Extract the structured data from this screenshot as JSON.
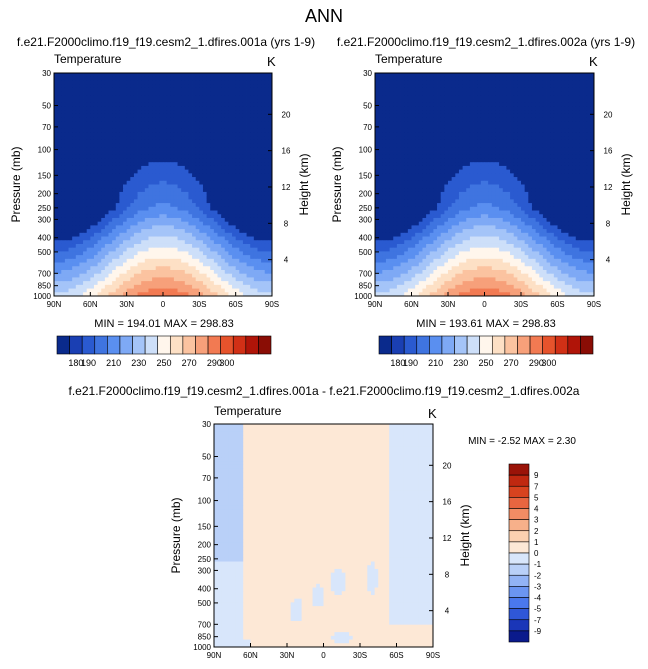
{
  "page_title": "ANN",
  "colors": {
    "abs_levels": [
      "#0a2a8c",
      "#1a3fb3",
      "#2a5ad0",
      "#3f74e0",
      "#5a8ff0",
      "#7ea9f5",
      "#a4c4f8",
      "#cddff9",
      "#fff6ec",
      "#fde0c5",
      "#fbc3a0",
      "#f7a07a",
      "#f27a52",
      "#e6532c",
      "#d13016",
      "#b01408",
      "#8a0d05"
    ],
    "diff_levels": [
      "#0a1a8c",
      "#1a36b8",
      "#2f57d8",
      "#4a78ee",
      "#6b95f2",
      "#92b3f5",
      "#b9d0f8",
      "#d8e6fb",
      "#fde8d6",
      "#fbd0b0",
      "#f7b08a",
      "#f28c64",
      "#e86540",
      "#d8431f",
      "#c02810",
      "#9a1308"
    ],
    "frame": "#000000"
  },
  "chart_data": [
    {
      "type": "heatmap",
      "name": "panel-case-a",
      "title": "f.e21.F2000climo.f19_f19.cesm2_1.dfires.001a (yrs 1-9)",
      "left_label": "Temperature",
      "right_label": "K",
      "xlabels": [
        "90N",
        "60N",
        "30N",
        "0",
        "30S",
        "60S",
        "90S"
      ],
      "xticks": [
        90,
        60,
        30,
        0,
        -30,
        -60,
        -90
      ],
      "ylabel": "Pressure (mb)",
      "ylabels": [
        "30",
        "50",
        "70",
        "100",
        "150",
        "200",
        "250",
        "300",
        "400",
        "500",
        "700",
        "850",
        "1000"
      ],
      "yticks": [
        30,
        50,
        70,
        100,
        150,
        200,
        250,
        300,
        400,
        500,
        700,
        850,
        1000
      ],
      "y2label": "Height (km)",
      "y2labels": [
        "20",
        "16",
        "12",
        "8",
        "4"
      ],
      "y2ticks": [
        20,
        16,
        12,
        8,
        4
      ],
      "ylim": [
        30,
        1000
      ],
      "xlim": [
        90,
        -90
      ],
      "stats": "MIN = 194.01   MAX = 298.83",
      "min": 194.01,
      "max": 298.83
    },
    {
      "type": "heatmap",
      "name": "panel-case-b",
      "title": "f.e21.F2000climo.f19_f19.cesm2_1.dfires.002a (yrs 1-9)",
      "left_label": "Temperature",
      "right_label": "K",
      "xlabels": [
        "90N",
        "60N",
        "30N",
        "0",
        "30S",
        "60S",
        "90S"
      ],
      "xticks": [
        90,
        60,
        30,
        0,
        -30,
        -60,
        -90
      ],
      "ylabel": "Pressure (mb)",
      "ylabels": [
        "30",
        "50",
        "70",
        "100",
        "150",
        "200",
        "250",
        "300",
        "400",
        "500",
        "700",
        "850",
        "1000"
      ],
      "yticks": [
        30,
        50,
        70,
        100,
        150,
        200,
        250,
        300,
        400,
        500,
        700,
        850,
        1000
      ],
      "y2label": "Height (km)",
      "y2labels": [
        "20",
        "16",
        "12",
        "8",
        "4"
      ],
      "y2ticks": [
        20,
        16,
        12,
        8,
        4
      ],
      "ylim": [
        30,
        1000
      ],
      "xlim": [
        90,
        -90
      ],
      "stats": "MIN = 193.61   MAX = 298.83",
      "min": 193.61,
      "max": 298.83
    },
    {
      "type": "heatmap",
      "name": "panel-difference",
      "title": "f.e21.F2000climo.f19_f19.cesm2_1.dfires.001a - f.e21.F2000climo.f19_f19.cesm2_1.dfires.002a",
      "left_label": "Temperature",
      "right_label": "K",
      "xlabels": [
        "90N",
        "60N",
        "30N",
        "0",
        "30S",
        "60S",
        "90S"
      ],
      "xticks": [
        90,
        60,
        30,
        0,
        -30,
        -60,
        -90
      ],
      "ylabel": "Pressure (mb)",
      "ylabels": [
        "30",
        "50",
        "70",
        "100",
        "150",
        "200",
        "250",
        "300",
        "400",
        "500",
        "700",
        "850",
        "1000"
      ],
      "yticks": [
        30,
        50,
        70,
        100,
        150,
        200,
        250,
        300,
        400,
        500,
        700,
        850,
        1000
      ],
      "y2label": "Height (km)",
      "y2labels": [
        "20",
        "16",
        "12",
        "8",
        "4"
      ],
      "y2ticks": [
        20,
        16,
        12,
        8,
        4
      ],
      "ylim": [
        30,
        1000
      ],
      "xlim": [
        90,
        -90
      ],
      "stats": "MIN =  -2.52  MAX =   2.30",
      "min": -2.52,
      "max": 2.3
    }
  ],
  "abs_colorbar": {
    "labels": [
      "180",
      "190",
      "210",
      "230",
      "250",
      "270",
      "290",
      "300"
    ],
    "levels": [
      180,
      190,
      200,
      210,
      220,
      230,
      240,
      250,
      260,
      270,
      280,
      290,
      300
    ]
  },
  "diff_colorbar": {
    "labels": [
      "9",
      "7",
      "5",
      "4",
      "3",
      "2",
      "1",
      "0",
      "-1",
      "-2",
      "-3",
      "-4",
      "-5",
      "-7",
      "-9"
    ]
  }
}
